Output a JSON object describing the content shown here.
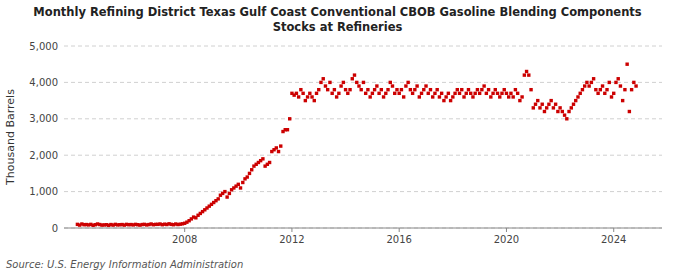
{
  "chart_data": {
    "type": "scatter",
    "title": "Monthly Refining District Texas Gulf Coast Conventional CBOB Gasoline Blending Components\nStocks at Refineries",
    "y_label": "Thousand Barrels",
    "annotations": [
      "Source: U.S. Energy Information Administration"
    ],
    "color": "#cc0000",
    "marker": "square",
    "grid": true,
    "xlim": [
      2003.5,
      2025.8
    ],
    "xticks": [
      2008,
      2012,
      2016,
      2020,
      2024
    ],
    "ylim": [
      0,
      5000
    ],
    "yticks": [
      0,
      {
        "value": 1000,
        "label": "1,000"
      },
      {
        "value": 2000,
        "label": "2,000"
      },
      {
        "value": 3000,
        "label": "3,000"
      },
      {
        "value": 4000,
        "label": "4,000"
      },
      {
        "value": 5000,
        "label": "5,000"
      }
    ],
    "x": [
      2004.0,
      2004.083,
      2004.167,
      2004.25,
      2004.333,
      2004.417,
      2004.5,
      2004.583,
      2004.667,
      2004.75,
      2004.833,
      2004.917,
      2005.0,
      2005.083,
      2005.167,
      2005.25,
      2005.333,
      2005.417,
      2005.5,
      2005.583,
      2005.667,
      2005.75,
      2005.833,
      2005.917,
      2006.0,
      2006.083,
      2006.167,
      2006.25,
      2006.333,
      2006.417,
      2006.5,
      2006.583,
      2006.667,
      2006.75,
      2006.833,
      2006.917,
      2007.0,
      2007.083,
      2007.167,
      2007.25,
      2007.333,
      2007.417,
      2007.5,
      2007.583,
      2007.667,
      2007.75,
      2007.833,
      2007.917,
      2008.0,
      2008.083,
      2008.167,
      2008.25,
      2008.333,
      2008.417,
      2008.5,
      2008.583,
      2008.667,
      2008.75,
      2008.833,
      2008.917,
      2009.0,
      2009.083,
      2009.167,
      2009.25,
      2009.333,
      2009.417,
      2009.5,
      2009.583,
      2009.667,
      2009.75,
      2009.833,
      2009.917,
      2010.0,
      2010.083,
      2010.167,
      2010.25,
      2010.333,
      2010.417,
      2010.5,
      2010.583,
      2010.667,
      2010.75,
      2010.833,
      2010.917,
      2011.0,
      2011.083,
      2011.167,
      2011.25,
      2011.333,
      2011.417,
      2011.5,
      2011.583,
      2011.667,
      2011.75,
      2011.833,
      2011.917,
      2012.0,
      2012.083,
      2012.167,
      2012.25,
      2012.333,
      2012.417,
      2012.5,
      2012.583,
      2012.667,
      2012.75,
      2012.833,
      2012.917,
      2013.0,
      2013.083,
      2013.167,
      2013.25,
      2013.333,
      2013.417,
      2013.5,
      2013.583,
      2013.667,
      2013.75,
      2013.833,
      2013.917,
      2014.0,
      2014.083,
      2014.167,
      2014.25,
      2014.333,
      2014.417,
      2014.5,
      2014.583,
      2014.667,
      2014.75,
      2014.833,
      2014.917,
      2015.0,
      2015.083,
      2015.167,
      2015.25,
      2015.333,
      2015.417,
      2015.5,
      2015.583,
      2015.667,
      2015.75,
      2015.833,
      2015.917,
      2016.0,
      2016.083,
      2016.167,
      2016.25,
      2016.333,
      2016.417,
      2016.5,
      2016.583,
      2016.667,
      2016.75,
      2016.833,
      2016.917,
      2017.0,
      2017.083,
      2017.167,
      2017.25,
      2017.333,
      2017.417,
      2017.5,
      2017.583,
      2017.667,
      2017.75,
      2017.833,
      2017.917,
      2018.0,
      2018.083,
      2018.167,
      2018.25,
      2018.333,
      2018.417,
      2018.5,
      2018.583,
      2018.667,
      2018.75,
      2018.833,
      2018.917,
      2019.0,
      2019.083,
      2019.167,
      2019.25,
      2019.333,
      2019.417,
      2019.5,
      2019.583,
      2019.667,
      2019.75,
      2019.833,
      2019.917,
      2020.0,
      2020.083,
      2020.167,
      2020.25,
      2020.333,
      2020.417,
      2020.5,
      2020.583,
      2020.667,
      2020.75,
      2020.833,
      2020.917,
      2021.0,
      2021.083,
      2021.167,
      2021.25,
      2021.333,
      2021.417,
      2021.5,
      2021.583,
      2021.667,
      2021.75,
      2021.833,
      2021.917,
      2022.0,
      2022.083,
      2022.167,
      2022.25,
      2022.333,
      2022.417,
      2022.5,
      2022.583,
      2022.667,
      2022.75,
      2022.833,
      2022.917,
      2023.0,
      2023.083,
      2023.167,
      2023.25,
      2023.333,
      2023.417,
      2023.5,
      2023.583,
      2023.667,
      2023.75,
      2023.833,
      2023.917,
      2024.0,
      2024.083,
      2024.167,
      2024.25,
      2024.333,
      2024.417,
      2024.5,
      2024.583,
      2024.667,
      2024.75,
      2024.833
    ],
    "values": [
      100,
      80,
      110,
      90,
      95,
      85,
      100,
      75,
      90,
      110,
      95,
      80,
      85,
      90,
      75,
      95,
      80,
      100,
      85,
      90,
      95,
      80,
      100,
      90,
      95,
      85,
      100,
      90,
      80,
      95,
      100,
      85,
      95,
      110,
      90,
      100,
      100,
      110,
      90,
      105,
      95,
      115,
      100,
      90,
      110,
      95,
      105,
      115,
      130,
      160,
      200,
      250,
      300,
      280,
      350,
      400,
      450,
      500,
      550,
      600,
      650,
      700,
      750,
      800,
      900,
      950,
      1000,
      850,
      950,
      1050,
      1100,
      1150,
      1200,
      1100,
      1250,
      1350,
      1400,
      1500,
      1600,
      1700,
      1750,
      1800,
      1850,
      1900,
      1700,
      1750,
      1800,
      2100,
      2150,
      2200,
      2100,
      2250,
      2650,
      2700,
      2700,
      3000,
      3700,
      3650,
      3700,
      3600,
      3800,
      3700,
      3500,
      3600,
      3700,
      3600,
      3500,
      3700,
      3800,
      4000,
      4100,
      3900,
      3800,
      4000,
      3700,
      3800,
      3600,
      3700,
      3900,
      4000,
      3800,
      3700,
      3800,
      4100,
      4200,
      4000,
      3900,
      3800,
      4000,
      3700,
      3800,
      3600,
      3700,
      3800,
      3900,
      3700,
      3800,
      3600,
      3700,
      3800,
      4000,
      3900,
      3700,
      3800,
      3700,
      3800,
      3600,
      3900,
      4000,
      3800,
      3700,
      3800,
      3900,
      3600,
      3700,
      3800,
      3900,
      3700,
      3800,
      3600,
      3700,
      3800,
      3600,
      3700,
      3500,
      3600,
      3700,
      3500,
      3600,
      3700,
      3800,
      3700,
      3800,
      3600,
      3700,
      3800,
      3700,
      3600,
      3700,
      3800,
      3700,
      3800,
      3900,
      3700,
      3800,
      3600,
      3700,
      3800,
      3700,
      3600,
      3700,
      3800,
      3700,
      3600,
      3700,
      3600,
      3800,
      3700,
      3500,
      3600,
      4200,
      4300,
      4200,
      3800,
      3300,
      3400,
      3500,
      3300,
      3400,
      3200,
      3300,
      3400,
      3500,
      3300,
      3400,
      3200,
      3300,
      3200,
      3100,
      3000,
      3200,
      3300,
      3400,
      3500,
      3600,
      3700,
      3800,
      3900,
      4000,
      3900,
      4000,
      4100,
      3800,
      3700,
      3800,
      3900,
      3700,
      3800,
      4000,
      3600,
      3700,
      4000,
      4100,
      3900,
      3500,
      3800,
      4500,
      3200,
      3800,
      4000,
      3900
    ]
  }
}
